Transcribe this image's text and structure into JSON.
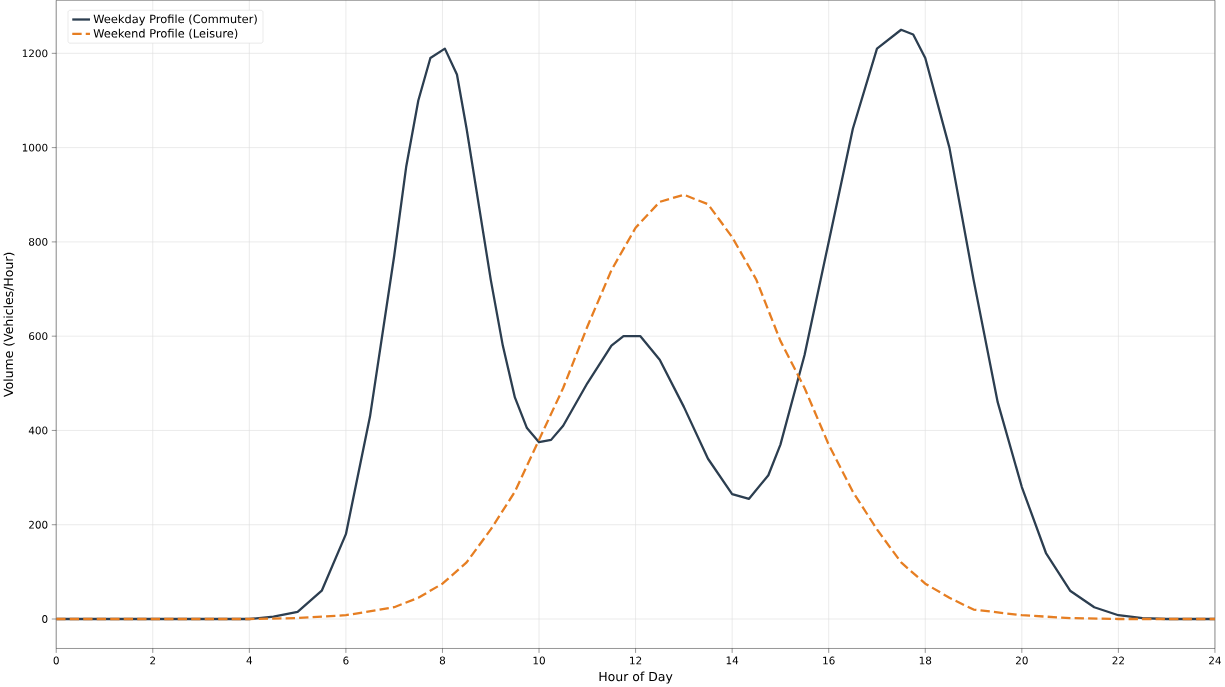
{
  "chart_data": {
    "type": "line",
    "xlabel": "Hour of Day",
    "ylabel": "Volume (Vehicles/Hour)",
    "xlim": [
      0,
      24
    ],
    "ylim": [
      -62.5,
      1312.5
    ],
    "xticks": [
      0,
      2,
      4,
      6,
      8,
      10,
      12,
      14,
      16,
      18,
      20,
      22,
      24
    ],
    "yticks": [
      0,
      200,
      400,
      600,
      800,
      1000,
      1200
    ],
    "grid": true,
    "legend": "top left",
    "series": [
      {
        "name": "Weekday Profile (Commuter)",
        "color": "#2c3e50",
        "line_style": "solid",
        "x": [
          0,
          4,
          4.5,
          5,
          5.5,
          6,
          6.5,
          7,
          7.25,
          7.5,
          7.75,
          8.05,
          8.3,
          8.5,
          8.75,
          9,
          9.25,
          9.5,
          9.75,
          10,
          10.25,
          10.5,
          11,
          11.5,
          11.75,
          12.1,
          12.5,
          13,
          13.5,
          14,
          14.35,
          14.75,
          15,
          15.5,
          16,
          16.5,
          17,
          17.5,
          17.75,
          18,
          18.5,
          19,
          19.5,
          20,
          20.5,
          21,
          21.5,
          22,
          22.5,
          23,
          24
        ],
        "values": [
          0,
          0,
          5,
          15,
          60,
          180,
          430,
          770,
          960,
          1100,
          1190,
          1210,
          1155,
          1040,
          880,
          720,
          580,
          470,
          405,
          375,
          380,
          410,
          500,
          580,
          600,
          600,
          550,
          450,
          340,
          265,
          255,
          305,
          370,
          560,
          800,
          1040,
          1210,
          1250,
          1240,
          1190,
          1000,
          720,
          460,
          280,
          140,
          60,
          25,
          8,
          2,
          0,
          0
        ]
      },
      {
        "name": "Weekend Profile (Leisure)",
        "color": "#e67e22",
        "line_style": "dashed",
        "x": [
          0,
          4,
          5,
          6,
          7,
          7.5,
          8,
          8.5,
          9,
          9.5,
          10,
          10.5,
          11,
          11.5,
          12,
          12.5,
          13,
          13.5,
          14,
          14.5,
          15,
          15.5,
          16,
          16.5,
          17,
          17.5,
          18,
          18.5,
          19,
          20,
          21,
          22,
          24
        ],
        "values": [
          0,
          0,
          2,
          8,
          25,
          45,
          75,
          120,
          190,
          270,
          380,
          490,
          620,
          740,
          830,
          885,
          900,
          880,
          810,
          720,
          590,
          490,
          370,
          270,
          190,
          120,
          75,
          45,
          20,
          8,
          2,
          0,
          0
        ]
      }
    ]
  }
}
